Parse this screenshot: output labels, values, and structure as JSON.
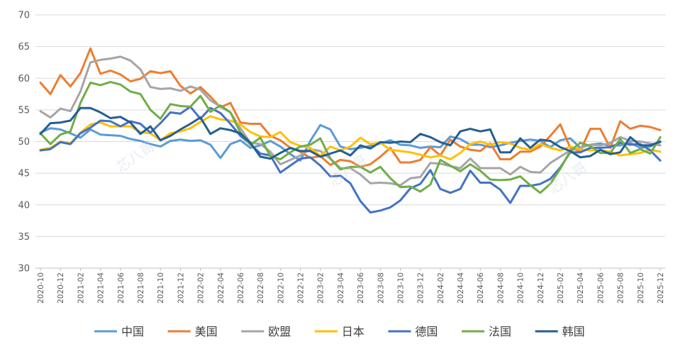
{
  "chart_data": {
    "type": "line",
    "title": "",
    "xlabel": "",
    "ylabel": "",
    "ylim": [
      30,
      70
    ],
    "y_ticks": [
      "30",
      "35",
      "40",
      "45",
      "50",
      "55",
      "60",
      "65",
      "70"
    ],
    "x_tick_labels": [
      "2020-10",
      "2020-12",
      "2021-02",
      "2021-04",
      "2021-06",
      "2021-08",
      "2021-10",
      "2021-12",
      "2022-02",
      "2022-04",
      "2022-06",
      "2022-08",
      "2022-10",
      "2022-12",
      "2023-02",
      "2023-04",
      "2023-06",
      "2023-08",
      "2023-10",
      "2023-12",
      "2024-02",
      "2024-04",
      "2024-06",
      "2024-08",
      "2024-10",
      "2024-12",
      "2025-02",
      "2025-04",
      "2025-06",
      "2025-08",
      "2025-10",
      "2025-12"
    ],
    "x_tick_indices": [
      0,
      2,
      4,
      6,
      8,
      10,
      12,
      14,
      16,
      18,
      20,
      22,
      24,
      26,
      28,
      30,
      32,
      34,
      36,
      38,
      40,
      42,
      44,
      46,
      48,
      50,
      52,
      54,
      56,
      58,
      60,
      62
    ],
    "legend_position": "bottom",
    "grid": true,
    "series": [
      {
        "name": "中国",
        "color": "#5b9bd5",
        "values": [
          51.4,
          52.1,
          51.9,
          51.3,
          50.6,
          51.9,
          51.1,
          51.0,
          50.9,
          50.4,
          50.1,
          49.6,
          49.2,
          50.1,
          50.3,
          50.1,
          50.2,
          49.5,
          47.4,
          49.6,
          50.2,
          49.0,
          49.4,
          50.1,
          49.2,
          48.0,
          47.0,
          50.1,
          52.6,
          51.9,
          49.2,
          48.8,
          49.0,
          49.3,
          49.7,
          50.2,
          49.5,
          49.4,
          49.0,
          49.2,
          49.1,
          50.8,
          50.4,
          49.5,
          49.5,
          49.1,
          49.4,
          49.8,
          50.1,
          50.3,
          50.1,
          49.1,
          50.2,
          50.5,
          49.0,
          49.5,
          49.7,
          49.3,
          49.4,
          49.8,
          49.0,
          49.2,
          49.9
        ]
      },
      {
        "name": "美国",
        "color": "#ed7d31",
        "values": [
          59.3,
          57.5,
          60.5,
          58.7,
          60.8,
          64.7,
          60.7,
          61.2,
          60.6,
          59.5,
          59.9,
          61.1,
          60.8,
          61.1,
          58.8,
          57.6,
          58.6,
          57.1,
          55.4,
          56.1,
          53.0,
          52.8,
          52.8,
          50.9,
          50.2,
          49.0,
          48.4,
          47.4,
          47.7,
          46.3,
          47.1,
          46.9,
          46.0,
          46.4,
          47.6,
          49.0,
          46.7,
          46.7,
          47.1,
          49.1,
          47.8,
          50.3,
          49.2,
          48.7,
          48.5,
          49.7,
          47.2,
          47.2,
          48.4,
          48.4,
          49.2,
          50.9,
          52.7,
          49.0,
          48.5,
          52.0,
          52.0,
          49.0,
          53.2,
          52.0,
          52.5,
          52.3,
          51.8
        ]
      },
      {
        "name": "欧盟",
        "color": "#a5a5a5",
        "values": [
          54.8,
          53.8,
          55.2,
          54.8,
          57.9,
          62.5,
          62.9,
          63.1,
          63.4,
          62.8,
          61.4,
          58.6,
          58.3,
          58.4,
          58.0,
          58.7,
          58.2,
          56.5,
          55.5,
          54.6,
          52.1,
          49.8,
          49.6,
          48.4,
          46.4,
          47.1,
          47.8,
          48.8,
          48.5,
          47.3,
          45.8,
          45.8,
          44.8,
          43.4,
          43.5,
          43.4,
          43.1,
          44.2,
          44.4,
          46.6,
          46.5,
          46.1,
          45.8,
          47.3,
          45.8,
          45.8,
          45.8,
          44.8,
          46.0,
          45.2,
          45.1,
          46.6,
          47.6,
          48.6,
          49.0,
          49.5,
          49.4,
          49.8,
          50.7,
          50.1,
          50.0,
          49.7,
          49.4
        ]
      },
      {
        "name": "日本",
        "color": "#ffc000",
        "values": [
          48.7,
          49.0,
          50.0,
          49.7,
          51.4,
          52.7,
          53.0,
          52.4,
          52.4,
          52.4,
          51.5,
          51.3,
          50.2,
          51.3,
          51.6,
          52.1,
          53.1,
          54.0,
          53.5,
          53.3,
          52.7,
          51.5,
          50.8,
          50.7,
          51.5,
          49.9,
          49.3,
          49.0,
          47.7,
          49.2,
          48.6,
          49.2,
          50.6,
          49.6,
          49.8,
          48.7,
          48.5,
          48.3,
          47.9,
          47.5,
          47.8,
          47.2,
          48.2,
          49.6,
          50.0,
          49.5,
          49.9,
          49.7,
          49.0,
          48.7,
          49.6,
          49.0,
          48.6,
          49.2,
          48.7,
          48.6,
          48.6,
          48.4,
          47.8,
          48.0,
          48.2,
          48.7,
          48.4
        ]
      },
      {
        "name": "德国",
        "color": "#4472c4",
        "values": [
          48.6,
          48.8,
          49.9,
          49.6,
          51.3,
          52.2,
          53.3,
          53.2,
          52.4,
          53.2,
          52.8,
          51.4,
          52.9,
          54.6,
          54.4,
          55.5,
          53.6,
          55.3,
          54.5,
          52.8,
          50.9,
          49.6,
          48.1,
          47.8,
          45.1,
          46.2,
          47.3,
          47.5,
          46.2,
          44.5,
          44.6,
          43.4,
          40.6,
          38.8,
          39.1,
          39.6,
          40.7,
          42.6,
          43.3,
          45.5,
          42.5,
          41.9,
          42.5,
          45.4,
          43.5,
          43.5,
          42.4,
          40.3,
          43.0,
          43.0,
          43.3,
          44.1,
          45.9,
          48.3,
          48.3,
          49.0,
          49.0,
          49.1,
          49.8,
          49.5,
          49.6,
          48.6,
          47.0
        ]
      },
      {
        "name": "法国",
        "color": "#70ad47",
        "values": [
          51.3,
          49.6,
          51.1,
          51.6,
          56.1,
          59.3,
          58.9,
          59.4,
          59.0,
          57.9,
          57.5,
          55.0,
          53.6,
          55.9,
          55.6,
          55.5,
          57.2,
          54.7,
          55.7,
          54.6,
          51.4,
          49.5,
          50.6,
          47.7,
          47.2,
          48.3,
          49.2,
          49.5,
          50.5,
          47.3,
          45.6,
          46.0,
          46.0,
          45.1,
          46.0,
          44.2,
          42.8,
          42.9,
          42.1,
          43.2,
          47.1,
          46.2,
          45.3,
          46.4,
          45.4,
          44.0,
          43.9,
          44.0,
          44.5,
          43.1,
          41.9,
          43.3,
          45.7,
          48.5,
          49.8,
          49.3,
          48.2,
          48.2,
          50.4,
          48.2,
          48.8,
          48.1,
          50.7
        ]
      },
      {
        "name": "韩国",
        "color": "#255e91",
        "values": [
          51.2,
          52.9,
          53.0,
          53.3,
          55.3,
          55.3,
          54.6,
          53.7,
          53.9,
          53.0,
          51.2,
          52.4,
          50.2,
          50.9,
          51.9,
          52.8,
          53.8,
          51.2,
          52.1,
          51.8,
          51.3,
          49.8,
          47.6,
          47.3,
          48.2,
          49.0,
          48.5,
          48.5,
          47.6,
          48.1,
          48.6,
          47.8,
          49.4,
          48.9,
          49.9,
          49.8,
          50.0,
          49.9,
          51.2,
          50.7,
          49.9,
          49.4,
          51.6,
          52.0,
          51.6,
          51.9,
          48.3,
          48.3,
          50.5,
          49.0,
          50.3,
          50.1,
          49.1,
          48.5,
          47.5,
          47.7,
          48.7,
          48.0,
          48.3,
          50.7,
          49.4,
          49.4,
          50.0
        ]
      }
    ]
  },
  "watermark_text": "芯八哥"
}
